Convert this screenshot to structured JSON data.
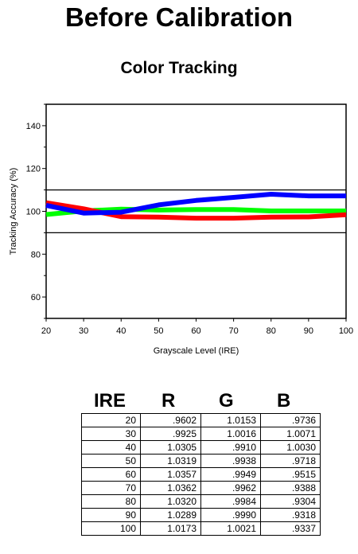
{
  "title": "Before Calibration",
  "subtitle": "Color Tracking",
  "chart_data": {
    "type": "line",
    "xlabel": "Grayscale Level (IRE)",
    "ylabel": "Tracking Accuracy (%)",
    "x": [
      20,
      30,
      40,
      50,
      60,
      70,
      80,
      90,
      100
    ],
    "xlim": [
      20,
      100
    ],
    "ylim": [
      50,
      150
    ],
    "xticks": [
      "20",
      "30",
      "40",
      "50",
      "60",
      "70",
      "80",
      "90",
      "100"
    ],
    "yticks": [
      "60",
      "80",
      "100",
      "120",
      "140"
    ],
    "ytick_values": [
      60,
      80,
      100,
      120,
      140
    ],
    "reference_lines": [
      90,
      110
    ],
    "grid": false,
    "legend": "none",
    "series": [
      {
        "color": "#00ff00",
        "values": [
          98.5,
          100.2,
          101.0,
          100.6,
          100.8,
          100.8,
          100.2,
          100.2,
          100.2
        ]
      },
      {
        "color": "#ff0000",
        "values": [
          104.0,
          101.2,
          97.5,
          97.3,
          96.8,
          96.8,
          97.3,
          97.4,
          98.4
        ]
      },
      {
        "color": "#0000ff",
        "values": [
          102.8,
          99.2,
          99.6,
          103.0,
          105.1,
          106.5,
          108.0,
          107.2,
          107.2
        ]
      }
    ]
  },
  "table": {
    "headers": [
      "IRE",
      "R",
      "G",
      "B"
    ],
    "rows": [
      [
        "20",
        ".9602",
        "1.0153",
        ".9736"
      ],
      [
        "30",
        ".9925",
        "1.0016",
        "1.0071"
      ],
      [
        "40",
        "1.0305",
        ".9910",
        "1.0030"
      ],
      [
        "50",
        "1.0319",
        ".9938",
        ".9718"
      ],
      [
        "60",
        "1.0357",
        ".9949",
        ".9515"
      ],
      [
        "70",
        "1.0362",
        ".9962",
        ".9388"
      ],
      [
        "80",
        "1.0320",
        ".9984",
        ".9304"
      ],
      [
        "90",
        "1.0289",
        ".9990",
        ".9318"
      ],
      [
        "100",
        "1.0173",
        "1.0021",
        ".9337"
      ]
    ]
  }
}
